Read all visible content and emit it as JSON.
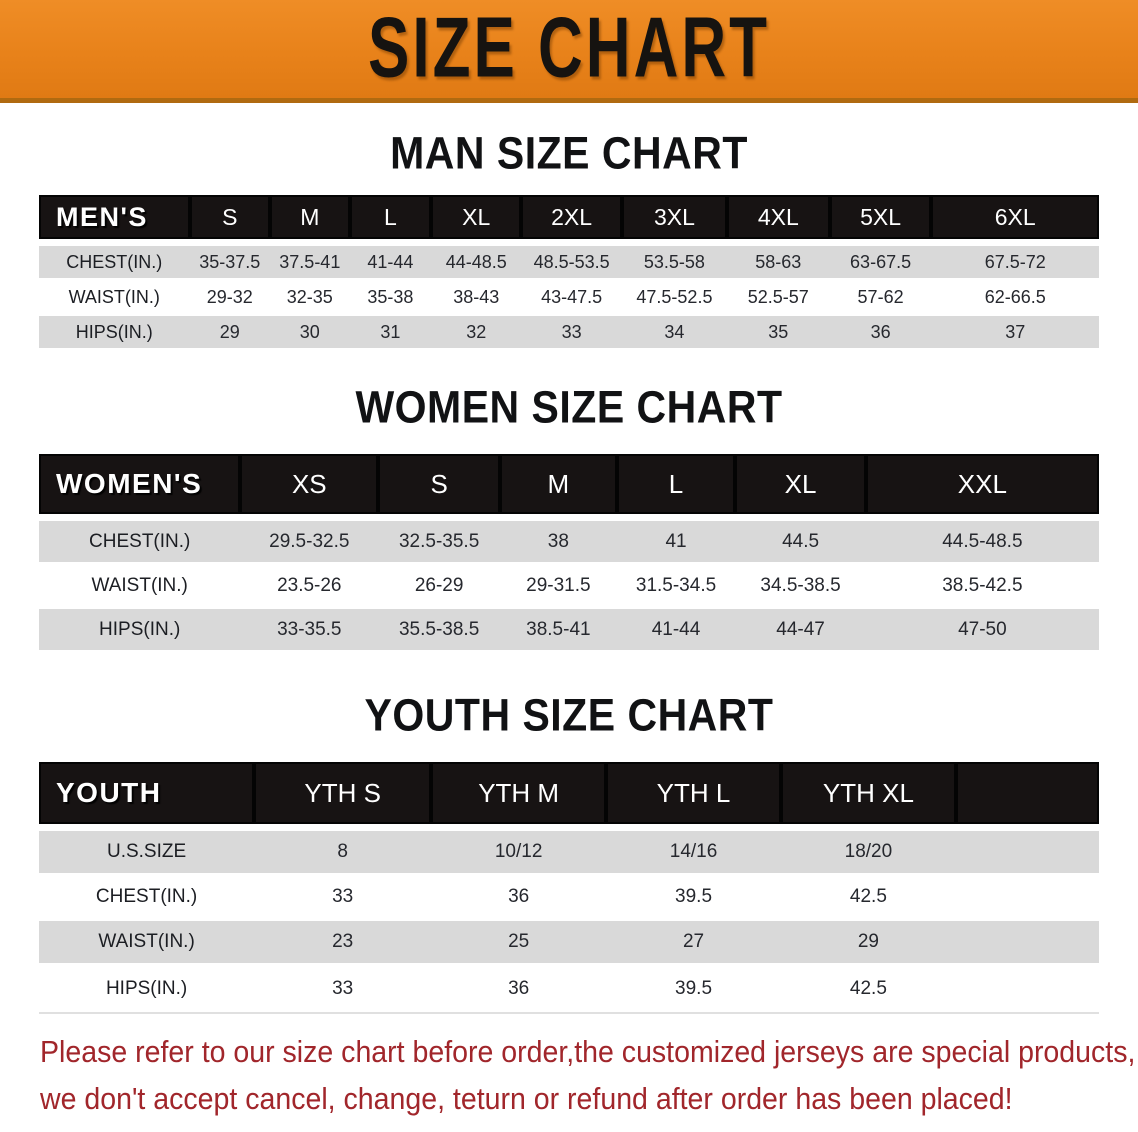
{
  "banner": {
    "title": "SIZE CHART"
  },
  "sections": [
    {
      "title": "MAN SIZE CHART",
      "table": {
        "label": "MEN'S",
        "sizes": [
          "S",
          "M",
          "L",
          "XL",
          "2XL",
          "3XL",
          "4XL",
          "5XL",
          "6XL"
        ],
        "rows": [
          {
            "label": "CHEST(IN.)",
            "values": [
              "35-37.5",
              "37.5-41",
              "41-44",
              "44-48.5",
              "48.5-53.5",
              "53.5-58",
              "58-63",
              "63-67.5",
              "67.5-72"
            ]
          },
          {
            "label": "WAIST(IN.)",
            "values": [
              "29-32",
              "32-35",
              "35-38",
              "38-43",
              "43-47.5",
              "47.5-52.5",
              "52.5-57",
              "57-62",
              "62-66.5"
            ]
          },
          {
            "label": "HIPS(IN.)",
            "values": [
              "29",
              "30",
              "31",
              "32",
              "33",
              "34",
              "35",
              "36",
              "37"
            ]
          }
        ]
      }
    },
    {
      "title": "WOMEN SIZE CHART",
      "table": {
        "label": "WOMEN'S",
        "sizes": [
          "XS",
          "S",
          "M",
          "L",
          "XL",
          "XXL"
        ],
        "rows": [
          {
            "label": "CHEST(IN.)",
            "values": [
              "29.5-32.5",
              "32.5-35.5",
              "38",
              "41",
              "44.5",
              "44.5-48.5"
            ]
          },
          {
            "label": "WAIST(IN.)",
            "values": [
              "23.5-26",
              "26-29",
              "29-31.5",
              "31.5-34.5",
              "34.5-38.5",
              "38.5-42.5"
            ]
          },
          {
            "label": "HIPS(IN.)",
            "values": [
              "33-35.5",
              "35.5-38.5",
              "38.5-41",
              "41-44",
              "44-47",
              "47-50"
            ]
          }
        ]
      }
    },
    {
      "title": "YOUTH SIZE CHART",
      "table": {
        "label": "YOUTH",
        "sizes": [
          "YTH S",
          "YTH M",
          "YTH L",
          "YTH XL"
        ],
        "rows": [
          {
            "label": "U.S.SIZE",
            "values": [
              "8",
              "10/12",
              "14/16",
              "18/20"
            ]
          },
          {
            "label": "CHEST(IN.)",
            "values": [
              "33",
              "36",
              "39.5",
              "42.5"
            ]
          },
          {
            "label": "WAIST(IN.)",
            "values": [
              "23",
              "25",
              "27",
              "29"
            ]
          },
          {
            "label": "HIPS(IN.)",
            "values": [
              "33",
              "36",
              "39.5",
              "42.5"
            ]
          }
        ]
      }
    }
  ],
  "notice": {
    "line1": "Please refer to our size chart before order,the customized jerseys are special products,",
    "line2": "we don't accept cancel, change, teturn or refund after order has been placed!"
  },
  "colors": {
    "banner_orange": "#e8821a",
    "table_header_black": "#171313",
    "row_stripe_gray": "#d9d9d9",
    "notice_red": "#a1262b"
  }
}
